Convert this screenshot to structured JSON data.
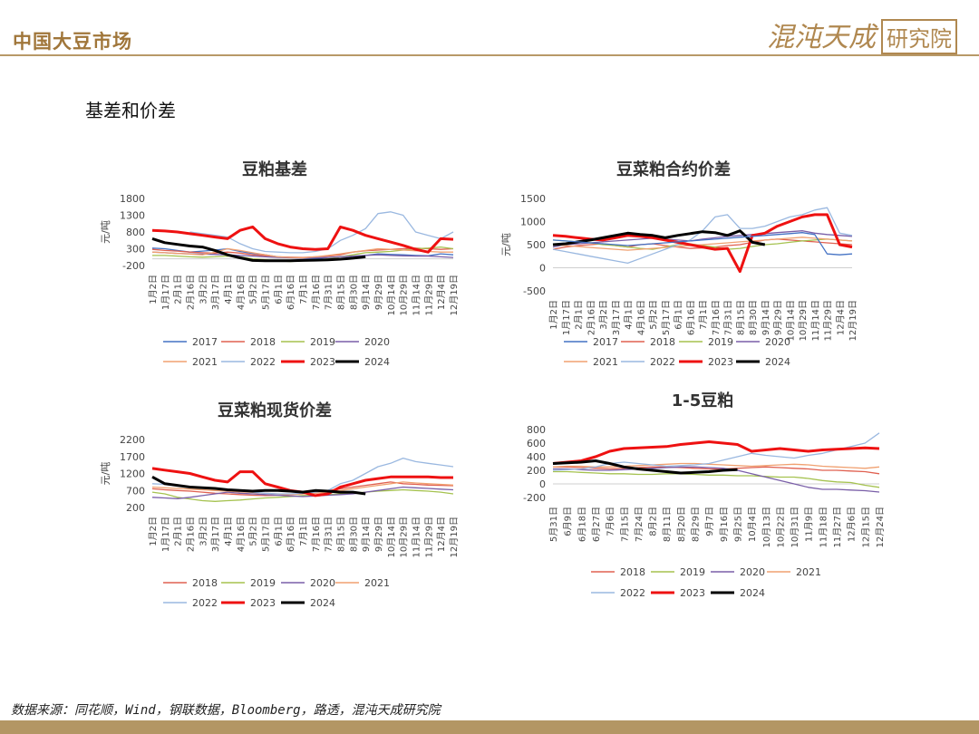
{
  "header": {
    "title": "中国大豆市场",
    "logo_text": "混沌天成",
    "logo_box_text": "研究院"
  },
  "section": {
    "title": "基差和价差"
  },
  "footer": {
    "source": "数据来源：同花顺，Wind，钢联数据，Bloomberg，路透，混沌天成研究院"
  },
  "colors": {
    "2017": "#4472c4",
    "2018": "#e06050",
    "2019": "#a5c24f",
    "2020": "#7a5fa8",
    "2021": "#f0a070",
    "2022": "#9ab8e0",
    "2023": "#ee1111",
    "2024": "#000000",
    "accent": "#b39664"
  },
  "chart_data": [
    {
      "id": "c1",
      "type": "line",
      "title": "豆粕基差",
      "ylabel": "元/吨",
      "yticks": [
        1800,
        1300,
        800,
        300,
        -200
      ],
      "ylim": [
        -200,
        1800
      ],
      "categories": [
        "1月2日",
        "1月17日",
        "2月1日",
        "2月16日",
        "3月2日",
        "3月17日",
        "4月1日",
        "4月16日",
        "5月2日",
        "5月17日",
        "6月1日",
        "6月16日",
        "7月1日",
        "7月16日",
        "7月31日",
        "8月15日",
        "8月30日",
        "9月14日",
        "9月29日",
        "10月14日",
        "10月29日",
        "11月14日",
        "11月29日",
        "12月4日",
        "12月19日"
      ],
      "series": [
        {
          "name": "2017",
          "values": [
            320,
            300,
            250,
            200,
            230,
            260,
            300,
            220,
            160,
            120,
            60,
            40,
            20,
            0,
            40,
            60,
            80,
            100,
            150,
            130,
            120,
            100,
            90,
            150,
            120
          ]
        },
        {
          "name": "2018",
          "values": [
            280,
            250,
            230,
            200,
            180,
            170,
            200,
            170,
            120,
            90,
            60,
            50,
            40,
            60,
            80,
            120,
            200,
            240,
            260,
            280,
            300,
            320,
            300,
            280,
            300
          ]
        },
        {
          "name": "2019",
          "values": [
            100,
            100,
            80,
            60,
            50,
            60,
            80,
            60,
            0,
            -30,
            -60,
            -80,
            -60,
            -40,
            0,
            60,
            120,
            180,
            200,
            220,
            260,
            300,
            320,
            350,
            300
          ]
        },
        {
          "name": "2020",
          "values": [
            200,
            180,
            160,
            150,
            140,
            130,
            120,
            100,
            80,
            60,
            40,
            30,
            20,
            30,
            40,
            60,
            80,
            100,
            120,
            100,
            90,
            80,
            80,
            60,
            40
          ]
        },
        {
          "name": "2021",
          "values": [
            200,
            180,
            160,
            140,
            120,
            200,
            300,
            250,
            180,
            120,
            60,
            40,
            30,
            60,
            100,
            150,
            200,
            250,
            300,
            280,
            260,
            240,
            220,
            200,
            200
          ]
        },
        {
          "name": "2022",
          "values": [
            null,
            null,
            null,
            800,
            750,
            700,
            650,
            450,
            300,
            220,
            200,
            180,
            180,
            220,
            300,
            550,
            700,
            900,
            1350,
            1400,
            1300,
            800,
            700,
            600,
            800
          ]
        },
        {
          "name": "2023",
          "values": [
            850,
            830,
            800,
            750,
            700,
            650,
            600,
            850,
            950,
            600,
            450,
            350,
            300,
            280,
            300,
            950,
            850,
            700,
            600,
            500,
            400,
            280,
            200,
            600,
            580
          ]
        },
        {
          "name": "2024",
          "values": [
            600,
            480,
            430,
            380,
            350,
            250,
            120,
            30,
            -50,
            -60,
            -60,
            -60,
            -50,
            -40,
            -30,
            -10,
            20,
            60,
            null,
            null,
            null,
            null,
            null,
            null,
            null
          ]
        }
      ]
    },
    {
      "id": "c2",
      "type": "line",
      "title": "豆菜粕合约价差",
      "ylabel": "元/吨",
      "yticks": [
        1500,
        1000,
        500,
        0,
        -500
      ],
      "ylim": [
        -500,
        1500
      ],
      "categories": [
        "1月2日",
        "1月17日",
        "2月1日",
        "2月16日",
        "3月2日",
        "3月17日",
        "4月1日",
        "4月16日",
        "5月2日",
        "5月17日",
        "6月1日",
        "6月16日",
        "7月1日",
        "7月16日",
        "7月31日",
        "8月15日",
        "8月30日",
        "9月14日",
        "9月29日",
        "10月14日",
        "10月29日",
        "11月14日",
        "11月29日",
        "12月4日",
        "12月19日"
      ],
      "series": [
        {
          "name": "2018",
          "values": [
            400,
            450,
            480,
            500,
            520,
            480,
            450,
            500,
            520,
            480,
            450,
            420,
            430,
            450,
            480,
            500,
            550,
            600,
            620,
            600,
            580,
            560,
            540,
            520,
            500
          ]
        },
        {
          "name": "2019",
          "values": [
            600,
            580,
            560,
            540,
            500,
            480,
            450,
            420,
            400,
            450,
            500,
            520,
            480,
            450,
            400,
            420,
            460,
            500,
            520,
            550,
            580,
            600,
            620,
            600,
            580
          ]
        },
        {
          "name": "2020",
          "values": [
            450,
            500,
            520,
            540,
            560,
            580,
            600,
            620,
            640,
            620,
            600,
            580,
            620,
            650,
            680,
            700,
            720,
            740,
            760,
            780,
            800,
            750,
            720,
            700,
            680
          ]
        },
        {
          "name": "2021",
          "values": [
            500,
            480,
            460,
            440,
            420,
            400,
            380,
            400,
            420,
            440,
            460,
            480,
            500,
            520,
            540,
            560,
            580,
            600,
            620,
            640,
            660,
            640,
            620,
            600,
            580
          ]
        },
        {
          "name": "2022",
          "values": [
            400,
            350,
            300,
            250,
            200,
            150,
            100,
            200,
            300,
            400,
            500,
            600,
            800,
            1100,
            1150,
            850,
            850,
            900,
            1000,
            1100,
            1150,
            1250,
            1300,
            750,
            700
          ]
        },
        {
          "name": "2023",
          "values": [
            700,
            680,
            650,
            620,
            600,
            650,
            700,
            680,
            650,
            600,
            550,
            500,
            450,
            400,
            420,
            -80,
            700,
            750,
            900,
            1000,
            1100,
            1150,
            1150,
            500,
            450
          ]
        },
        {
          "name": "2024",
          "values": [
            500,
            520,
            560,
            600,
            650,
            700,
            750,
            720,
            700,
            650,
            700,
            740,
            780,
            760,
            700,
            800,
            550,
            500,
            null,
            null,
            null,
            null,
            null,
            null,
            null
          ]
        },
        {
          "name": "2017",
          "values": [
            600,
            580,
            560,
            540,
            520,
            500,
            480,
            500,
            520,
            540,
            560,
            580,
            600,
            620,
            640,
            660,
            680,
            700,
            720,
            740,
            760,
            720,
            300,
            280,
            300
          ]
        }
      ]
    },
    {
      "id": "c3",
      "type": "line",
      "title": "豆菜粕现货价差",
      "ylabel": "元/吨",
      "yticks": [
        2200,
        1700,
        1200,
        700,
        200
      ],
      "ylim": [
        200,
        2200
      ],
      "categories": [
        "1月2日",
        "1月17日",
        "2月1日",
        "2月16日",
        "3月2日",
        "3月17日",
        "4月1日",
        "4月16日",
        "5月2日",
        "5月17日",
        "6月1日",
        "6月16日",
        "7月1日",
        "7月16日",
        "7月31日",
        "8月15日",
        "8月30日",
        "9月14日",
        "9月29日",
        "10月14日",
        "10月29日",
        "11月14日",
        "11月29日",
        "12月4日",
        "12月19日"
      ],
      "series": [
        {
          "name": "2018",
          "values": [
            750,
            720,
            700,
            680,
            650,
            620,
            600,
            580,
            560,
            550,
            560,
            580,
            600,
            650,
            700,
            750,
            800,
            850,
            900,
            950,
            900,
            880,
            860,
            850,
            840
          ]
        },
        {
          "name": "2019",
          "values": [
            650,
            600,
            500,
            450,
            400,
            380,
            400,
            420,
            450,
            480,
            500,
            520,
            550,
            560,
            580,
            600,
            620,
            650,
            680,
            700,
            720,
            700,
            680,
            650,
            600
          ]
        },
        {
          "name": "2020",
          "values": [
            500,
            480,
            460,
            500,
            550,
            600,
            650,
            620,
            600,
            580,
            560,
            540,
            520,
            540,
            560,
            580,
            600,
            650,
            700,
            750,
            800,
            780,
            760,
            740,
            720
          ]
        },
        {
          "name": "2021",
          "values": [
            800,
            780,
            760,
            740,
            720,
            700,
            680,
            660,
            640,
            620,
            600,
            580,
            600,
            620,
            650,
            700,
            750,
            800,
            850,
            900,
            950,
            920,
            900,
            880,
            860
          ]
        },
        {
          "name": "2022",
          "values": [
            900,
            880,
            850,
            800,
            780,
            750,
            700,
            680,
            650,
            620,
            600,
            600,
            620,
            650,
            700,
            900,
            1000,
            1200,
            1400,
            1500,
            1650,
            1550,
            1500,
            1450,
            1400
          ]
        },
        {
          "name": "2023",
          "values": [
            1350,
            1300,
            1250,
            1200,
            1100,
            1000,
            950,
            1250,
            1250,
            900,
            800,
            700,
            650,
            550,
            600,
            800,
            900,
            1000,
            1050,
            1100,
            1100,
            1100,
            1100,
            1080,
            1080
          ]
        },
        {
          "name": "2024",
          "values": [
            1100,
            900,
            850,
            800,
            780,
            760,
            720,
            700,
            680,
            700,
            700,
            680,
            650,
            700,
            680,
            650,
            650,
            600,
            null,
            null,
            null,
            null,
            null,
            null,
            null
          ]
        }
      ]
    },
    {
      "id": "c4",
      "type": "line",
      "title": "1-5豆粕",
      "ylabel": "",
      "yticks": [
        800,
        600,
        400,
        200,
        0,
        -200
      ],
      "ylim": [
        -200,
        800
      ],
      "categories": [
        "5月31日",
        "6月9日",
        "6月18日",
        "6月27日",
        "7月6日",
        "7月15日",
        "7月24日",
        "8月2日",
        "8月11日",
        "8月20日",
        "8月29日",
        "9月7日",
        "9月16日",
        "9月25日",
        "10月4日",
        "10月13日",
        "10月22日",
        "10月31日",
        "11月9日",
        "11月18日",
        "11月27日",
        "12月6日",
        "12月15日",
        "12月24日"
      ],
      "series": [
        {
          "name": "2018",
          "values": [
            250,
            250,
            240,
            230,
            220,
            230,
            240,
            250,
            250,
            240,
            230,
            220,
            220,
            230,
            240,
            250,
            240,
            230,
            220,
            200,
            200,
            190,
            180,
            150
          ]
        },
        {
          "name": "2019",
          "values": [
            180,
            180,
            170,
            160,
            150,
            150,
            140,
            140,
            150,
            150,
            140,
            130,
            130,
            120,
            120,
            110,
            100,
            100,
            80,
            50,
            30,
            20,
            -20,
            -50
          ]
        },
        {
          "name": "2020",
          "values": [
            220,
            220,
            210,
            200,
            200,
            210,
            220,
            230,
            240,
            250,
            250,
            240,
            230,
            200,
            150,
            100,
            50,
            0,
            -50,
            -80,
            -80,
            -90,
            -100,
            -120
          ]
        },
        {
          "name": "2021",
          "values": [
            250,
            260,
            260,
            250,
            250,
            260,
            270,
            280,
            290,
            300,
            300,
            290,
            280,
            270,
            260,
            270,
            280,
            290,
            280,
            260,
            250,
            240,
            230,
            250
          ]
        },
        {
          "name": "2022",
          "values": [
            200,
            210,
            220,
            250,
            300,
            320,
            300,
            280,
            260,
            270,
            280,
            300,
            350,
            400,
            450,
            420,
            400,
            380,
            420,
            450,
            500,
            550,
            600,
            750
          ]
        },
        {
          "name": "2023",
          "values": [
            300,
            320,
            340,
            400,
            480,
            520,
            530,
            540,
            550,
            580,
            600,
            620,
            600,
            580,
            480,
            500,
            520,
            500,
            480,
            500,
            510,
            520,
            530,
            520
          ]
        },
        {
          "name": "2024",
          "values": [
            300,
            310,
            320,
            340,
            300,
            250,
            220,
            200,
            180,
            160,
            170,
            180,
            200,
            210,
            null,
            null,
            null,
            null,
            null,
            null,
            null,
            null,
            null,
            null
          ]
        }
      ]
    }
  ]
}
